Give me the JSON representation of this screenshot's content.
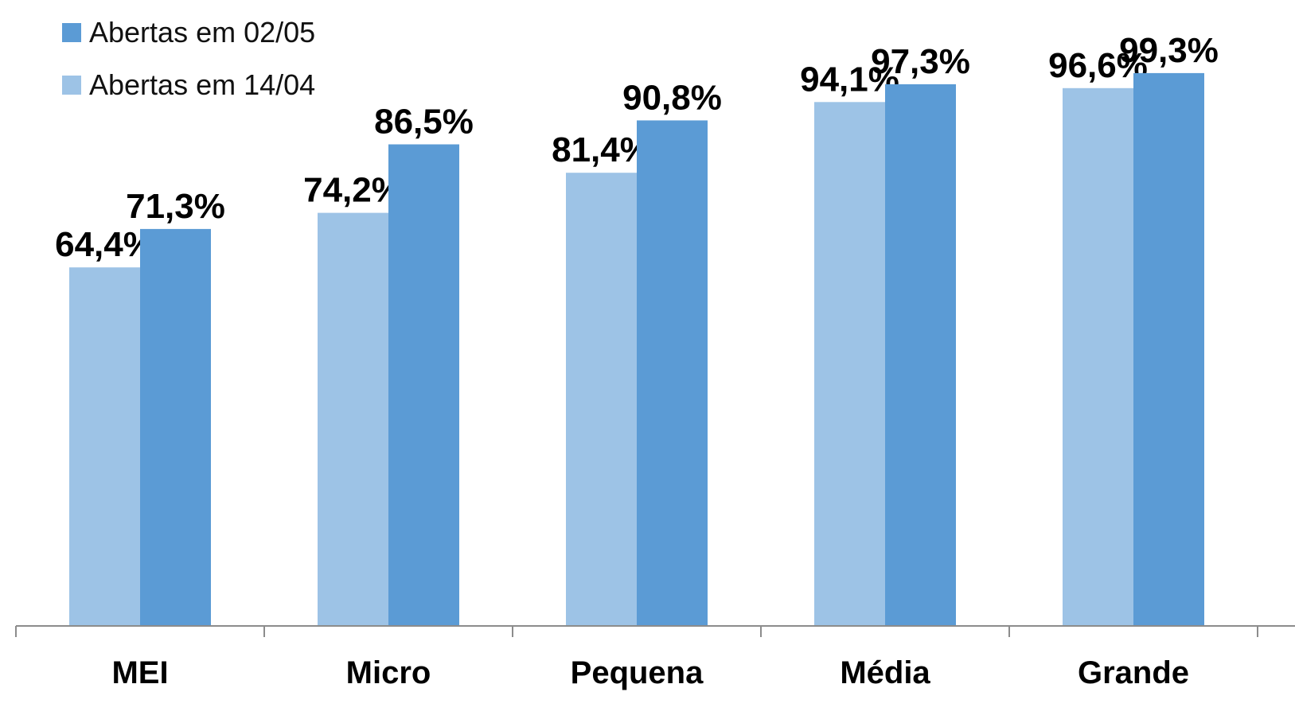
{
  "colors": {
    "series_0205": "#5b9bd5",
    "series_1404": "#9dc3e6",
    "axis": "#8c8c8c",
    "label_text": "#000000",
    "legend_text": "#111111"
  },
  "legend": {
    "items": [
      {
        "label": "Abertas em 02/05",
        "color": "#5b9bd5"
      },
      {
        "label": "Abertas em 14/04",
        "color": "#9dc3e6"
      }
    ],
    "position": "top-left"
  },
  "chart_data": {
    "type": "bar",
    "title": "",
    "xlabel": "",
    "ylabel": "",
    "ylim": [
      0,
      100
    ],
    "grid": false,
    "legend_position": "top-left",
    "categories": [
      "MEI",
      "Micro",
      "Pequena",
      "Média",
      "Grande"
    ],
    "series": [
      {
        "name": "Abertas em 14/04",
        "color": "#9dc3e6",
        "values": [
          64.4,
          74.2,
          81.4,
          94.1,
          96.6
        ],
        "labels": [
          "64,4%",
          "74,2%",
          "81,4%",
          "94,1%",
          "96,6%"
        ]
      },
      {
        "name": "Abertas em 02/05",
        "color": "#5b9bd5",
        "values": [
          71.3,
          86.5,
          90.8,
          97.3,
          99.3
        ],
        "labels": [
          "71,3%",
          "86,5%",
          "90,8%",
          "97,3%",
          "99,3%"
        ]
      }
    ]
  }
}
